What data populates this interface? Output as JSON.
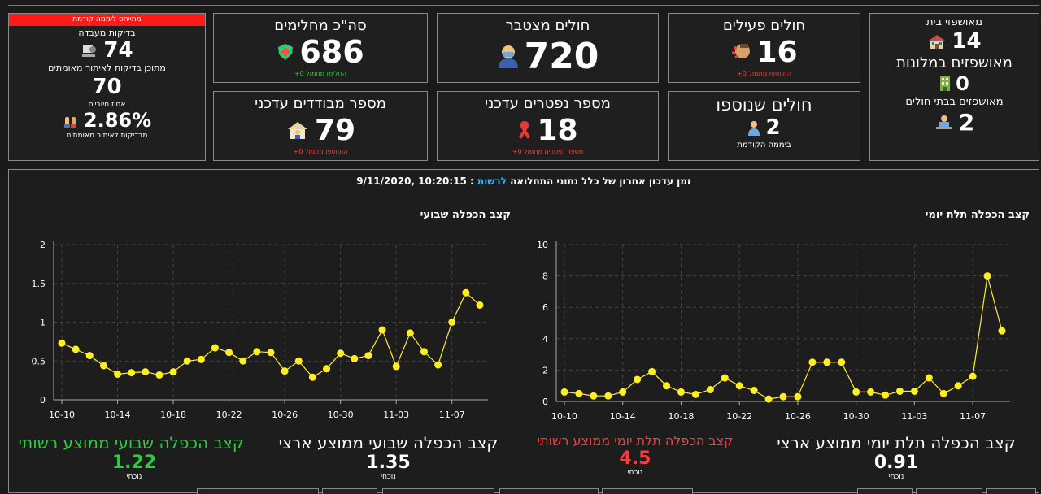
{
  "previous_day": {
    "header": "מתייחס ליממה קודמת",
    "lab_tests_label": "בדיקות מעבדה",
    "lab_tests_value": "74",
    "of_which_label": "מתוכן בדיקות לאיתור מאומתים",
    "of_which_value": "70",
    "positive_pct_label": "אחוז חיוביים",
    "positive_pct_value": "2.86%",
    "positive_pct_note": "מבדיקות לאיתור מאומתים"
  },
  "recovered": {
    "title": "סה\"כ מחלימים",
    "value": "686",
    "note": "החלימו מתמול 0+"
  },
  "cumulative": {
    "title": "חולים מצטבר",
    "value": "720"
  },
  "active": {
    "title": "חולים פעילים",
    "value": "16",
    "note": "התווספו מתמול 0+"
  },
  "isolated": {
    "title": "מספר מבודדים עדכני",
    "value": "79",
    "note": "התווספו מתמול 0+"
  },
  "deceased": {
    "title": "מספר נפטרים עדכני",
    "value": "18",
    "note": "מספר נפטרים מתמול 0+"
  },
  "new_patients": {
    "title": "חולים שנוספו",
    "value": "2",
    "note": "ביממה הקודמת"
  },
  "hospitalized": {
    "home_label": "מאושפזי בית",
    "home_value": "14",
    "hotel_label": "מאושפזים במלונות",
    "hotel_value": "0",
    "hospital_label": "מאושפזים בבתי חולים",
    "hospital_value": "2"
  },
  "update_line": {
    "prefix": "זמן עדכון אחרון של כלל נתוני התחלואה",
    "highlight": "לרשות",
    "suffix": ":",
    "datetime": "9/11/2020, 10:20:15"
  },
  "colors": {
    "accent": "#ffee22",
    "positive": "#2ecc40",
    "negative": "#ff3b3b",
    "link": "#29b6f6"
  },
  "stats": {
    "weekly_local_label": "קצב הכפלה שבועי ממוצע רשותי",
    "weekly_local_value": "1.22",
    "weekly_local_note": "נוכחי",
    "weekly_national_label": "קצב הכפלה שבועי ממוצע ארצי",
    "weekly_national_value": "1.35",
    "weekly_national_note": "נוכחי",
    "tri_local_label": "קצב הכפלה תלת יומי ממוצע רשותי",
    "tri_local_value": "4.5",
    "tri_local_note": "נוכחי",
    "tri_national_label": "קצב הכפלה תלת יומי ממוצע ארצי",
    "tri_national_value": "0.91",
    "tri_national_note": "נוכחי"
  },
  "chart_data": [
    {
      "type": "line",
      "title": "קצב הכפלה שבועי",
      "ylim": [
        0,
        2
      ],
      "yticks": [
        "0",
        "0.5",
        "1",
        "1.5",
        "2"
      ],
      "xticks": [
        "10-10",
        "10-14",
        "10-18",
        "10-22",
        "10-26",
        "10-30",
        "11-03",
        "11-07"
      ],
      "grid": true,
      "series": [
        {
          "values": [
            0.73,
            0.65,
            0.57,
            0.44,
            0.33,
            0.35,
            0.36,
            0.32,
            0.36,
            0.5,
            0.52,
            0.67,
            0.61,
            0.5,
            0.62,
            0.61,
            0.37,
            0.5,
            0.29,
            0.4,
            0.6,
            0.53,
            0.57,
            0.9,
            0.43,
            0.86,
            0.62,
            0.45,
            1.0,
            1.38,
            1.22
          ]
        }
      ]
    },
    {
      "type": "line",
      "title": "קצב הכפלה תלת יומי",
      "ylim": [
        0,
        10
      ],
      "yticks": [
        "0",
        "2",
        "4",
        "6",
        "8",
        "10"
      ],
      "xticks": [
        "10-10",
        "10-14",
        "10-18",
        "10-22",
        "10-26",
        "10-30",
        "11-03",
        "11-07"
      ],
      "grid": true,
      "series": [
        {
          "values": [
            0.6,
            0.5,
            0.35,
            0.35,
            0.6,
            1.4,
            1.9,
            1.0,
            0.6,
            0.45,
            0.75,
            1.5,
            1.0,
            0.7,
            0.15,
            0.3,
            0.3,
            2.5,
            2.5,
            2.5,
            0.6,
            0.6,
            0.4,
            0.65,
            0.65,
            1.5,
            0.5,
            1.0,
            1.6,
            8.0,
            4.5
          ]
        }
      ]
    }
  ]
}
